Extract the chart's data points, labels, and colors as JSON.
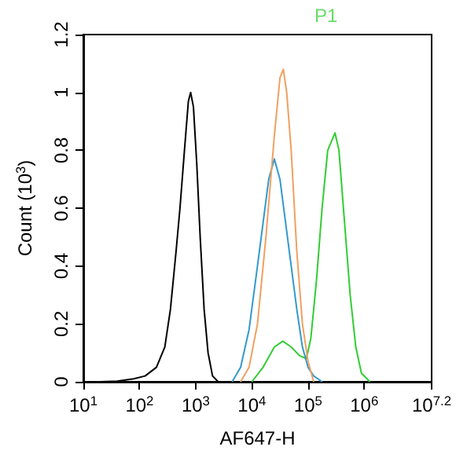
{
  "chart_data": {
    "type": "line",
    "xlabel": "AF647-H",
    "ylabel": "Count (10$^{3}$)",
    "log": "x",
    "marker": "none",
    "grid": false,
    "xlim": [
      10,
      15848932
    ],
    "xticks": [
      {
        "value": 10,
        "label": "10$^{1}$"
      },
      {
        "value": 100,
        "label": "10$^{2}$"
      },
      {
        "value": 1000,
        "label": "10$^{3}$"
      },
      {
        "value": 10000,
        "label": "10$^{4}$"
      },
      {
        "value": 100000,
        "label": "10$^{5}$"
      },
      {
        "value": 1000000,
        "label": "10$^{6}$"
      },
      {
        "value": 15848932,
        "label": "10$^{7.2}$"
      }
    ],
    "ylim": [
      0,
      1.2
    ],
    "yticks": [
      0,
      0.2,
      0.4,
      0.6,
      0.8,
      1,
      1.2
    ],
    "annotations": [
      "P1"
    ],
    "series": [
      {
        "color": "#000000",
        "x": [
          20,
          40,
          79,
          126,
          200,
          282,
          355,
          447,
          525,
          631,
          741,
          813,
          912,
          1047,
          1202,
          1413,
          1660,
          1995,
          2512
        ],
        "values": [
          0,
          0.002,
          0.01,
          0.02,
          0.05,
          0.12,
          0.25,
          0.45,
          0.6,
          0.8,
          0.97,
          1.0,
          0.95,
          0.75,
          0.5,
          0.25,
          0.1,
          0.02,
          0
        ]
      },
      {
        "color": "#33cc33",
        "x": [
          10000,
          15849,
          25119,
          35481,
          50119,
          70795,
          93325,
          112202,
          141254,
          177828,
          223872,
          301995,
          354813,
          446684,
          562341,
          707946,
          891251,
          1258925
        ],
        "values": [
          0,
          0.05,
          0.12,
          0.14,
          0.12,
          0.09,
          0.08,
          0.15,
          0.35,
          0.6,
          0.8,
          0.86,
          0.8,
          0.55,
          0.3,
          0.12,
          0.03,
          0
        ]
      },
      {
        "color": "#3399cc",
        "x": [
          4467,
          6310,
          8913,
          12589,
          15849,
          19953,
          25119,
          31623,
          39811,
          50119,
          63096,
          79433,
          100000,
          125893,
          177828
        ],
        "values": [
          0,
          0.05,
          0.18,
          0.4,
          0.55,
          0.7,
          0.77,
          0.7,
          0.55,
          0.4,
          0.25,
          0.12,
          0.05,
          0.02,
          0
        ]
      },
      {
        "color": "#f0a060",
        "x": [
          6310,
          8913,
          12589,
          17783,
          25119,
          31623,
          36308,
          41687,
          50119,
          63096,
          79433,
          100000,
          125893
        ],
        "values": [
          0,
          0.05,
          0.2,
          0.5,
          0.85,
          1.05,
          1.08,
          1.0,
          0.8,
          0.45,
          0.2,
          0.07,
          0
        ]
      }
    ]
  }
}
